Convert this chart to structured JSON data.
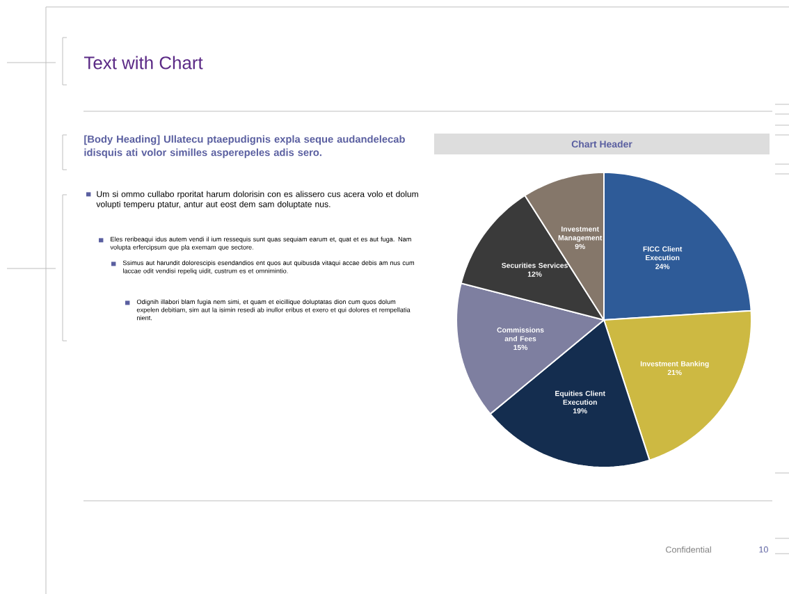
{
  "chart_data": {
    "type": "pie",
    "title": "Chart Header",
    "categories": [
      "FICC Client Execution",
      "Investment Banking",
      "Equities Client Execution",
      "Commissions and Fees",
      "Securities Services",
      "Investment Management"
    ],
    "values": [
      24,
      21,
      19,
      15,
      12,
      9
    ],
    "value_labels": [
      "24%",
      "21%",
      "19%",
      "15%",
      "12%",
      "9%"
    ],
    "colors": [
      "#2e5b98",
      "#cdb942",
      "#142d4f",
      "#7e7fa0",
      "#3a3a3a",
      "#85776a"
    ],
    "annotations": [
      "Text with Chart",
      "[Body Heading] Ullatecu ptaepudignis expla seque audandelecab idisquis ati volor similles asperepeles adis sero.",
      "Um si ommo cullabo rporitat harum dolorisin con es alissero cus acera volo et dolum volupti temperu ptatur, antur aut eost dem sam doluptate nus.",
      "Eles reribeaqui idus autem vendi il ium ressequis sunt quas sequiam earum et, quat et es aut fuga. Nam volupta erfercipsum que pla exemam que sectore.",
      "Ssimus aut harundit dolorescipis esendandios ent quos aut quibusda vitaqui accae debis am nus cum laccae odit vendisi repeliq uidit, custrum es et omnimintio.",
      "Odignih illabori blam fugia nem simi, et quam et eicillique doluptatas dion cum quos dolum expelen debitiam, sim aut la isimin resedi ab inullor eribus et exero et qui dolores et rempellatia nient.",
      "Confidential",
      "10"
    ]
  }
}
